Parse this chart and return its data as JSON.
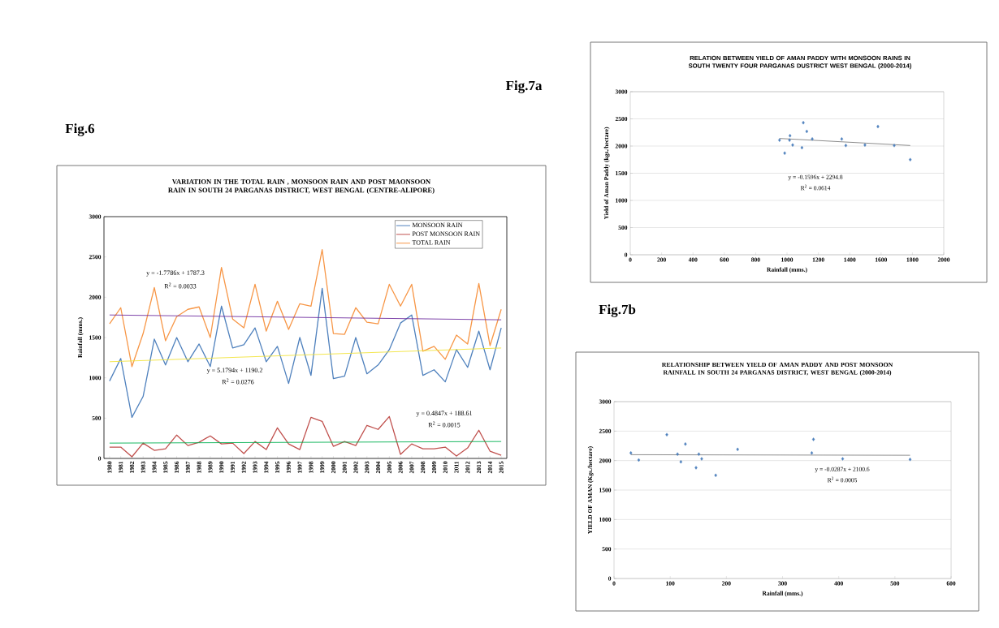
{
  "chart_data": [
    {
      "type": "line",
      "title": "VARIATION IN THE TOTAL RAIN , MONSOON RAIN AND POST MAONSOON RAIN IN SOUTH 24 PARGANAS DISTRICT, WEST BENGAL (CENTRE-ALIPORE)",
      "ylabel": "Rainfall (mms.)",
      "x": [
        1980,
        1981,
        1982,
        1983,
        1984,
        1985,
        1986,
        1987,
        1988,
        1989,
        1990,
        1991,
        1992,
        1993,
        1994,
        1995,
        1996,
        1997,
        1998,
        1999,
        2000,
        2001,
        2002,
        2003,
        2004,
        2005,
        2006,
        2007,
        2008,
        2009,
        2010,
        2011,
        2012,
        2013,
        2014,
        2015
      ],
      "xlim": [
        1979.5,
        2015.5
      ],
      "xticks": [
        1980,
        1981,
        1982,
        1983,
        1984,
        1985,
        1986,
        1987,
        1988,
        1989,
        1990,
        1991,
        1992,
        1993,
        1994,
        1995,
        1996,
        1997,
        1998,
        1999,
        2000,
        2001,
        2002,
        2003,
        2004,
        2005,
        2006,
        2007,
        2008,
        2009,
        2010,
        2011,
        2012,
        2013,
        2014,
        2015
      ],
      "ylim": [
        0,
        3000
      ],
      "yticks": [
        0,
        500,
        1000,
        1500,
        2000,
        2500,
        3000
      ],
      "legend": "top right",
      "marker": "none",
      "series": [
        {
          "name": "MONSOON RAIN",
          "color": "#4f81bd",
          "values": [
            960,
            1240,
            510,
            770,
            1480,
            1160,
            1500,
            1200,
            1420,
            1140,
            1890,
            1370,
            1410,
            1620,
            1200,
            1390,
            930,
            1500,
            1030,
            2110,
            990,
            1020,
            1500,
            1050,
            1160,
            1350,
            1680,
            1780,
            1030,
            1100,
            950,
            1350,
            1130,
            1580,
            1100,
            1620
          ]
        },
        {
          "name": "POST MONSOON RAIN",
          "color": "#c0504d",
          "values": [
            140,
            140,
            20,
            190,
            100,
            120,
            290,
            160,
            200,
            280,
            180,
            190,
            60,
            210,
            110,
            380,
            180,
            110,
            510,
            460,
            150,
            210,
            160,
            410,
            360,
            520,
            50,
            180,
            120,
            120,
            140,
            30,
            130,
            350,
            90,
            40
          ]
        },
        {
          "name": "TOTAL RAIN",
          "color": "#f79646",
          "values": [
            1670,
            1870,
            1140,
            1550,
            2120,
            1460,
            1760,
            1850,
            1880,
            1500,
            2370,
            1730,
            1620,
            2160,
            1580,
            1950,
            1600,
            1920,
            1890,
            2590,
            1550,
            1540,
            1870,
            1690,
            1670,
            2160,
            1890,
            2160,
            1330,
            1390,
            1230,
            1530,
            1420,
            2170,
            1400,
            1850
          ]
        },
        {
          "type": "line",
          "color": "#7030a0",
          "x": [
            1980,
            2015
          ],
          "values": [
            1780,
            1720
          ]
        },
        {
          "type": "line",
          "color": "#f2e33c",
          "x": [
            1980,
            2015
          ],
          "values": [
            1200,
            1370
          ]
        },
        {
          "type": "line",
          "color": "#00b050",
          "x": [
            1980,
            2015
          ],
          "values": [
            190,
            210
          ]
        }
      ],
      "annotations": [
        "Fig.6",
        "y = -1.7786x + 1787.3",
        "R$^{2}$ = 0.0033",
        "y = 5.1794x + 1190.2",
        "R$^{2}$ = 0.0276",
        "y = 0.4847x + 188.61",
        "R$^{2}$ = 0.0015"
      ]
    },
    {
      "type": "scatter",
      "title": "RELATION BETWEEN YIELD OF AMAN PADDY WITH MONSOON RAINS IN SOUTH TWENTY FOUR PARGANAS DUSTRICT WEST BENGAL (2000-2014)",
      "xlabel": "Rainfall (mms.)",
      "ylabel": "Yield of Aman Paddy (kgs./hectare)",
      "xlim": [
        0,
        2000
      ],
      "xticks": [
        0,
        200,
        400,
        600,
        800,
        1000,
        1200,
        1400,
        1600,
        1800,
        2000
      ],
      "ylim": [
        0,
        3000
      ],
      "yticks": [
        0,
        500,
        1000,
        1500,
        2000,
        2500,
        3000
      ],
      "grid": "y",
      "marker": "diamond",
      "series": [
        {
          "color": "#4f81bd",
          "x": [
            952,
            985,
            1019,
            1016,
            1036,
            1095,
            1104,
            1126,
            1161,
            1349,
            1375,
            1497,
            1580,
            1684,
            1786
          ],
          "values": [
            2110,
            1870,
            2190,
            2110,
            2020,
            1970,
            2430,
            2270,
            2130,
            2130,
            2010,
            2020,
            2360,
            2010,
            1750
          ]
        },
        {
          "type": "line",
          "color": "#808080",
          "marker": "none",
          "x": [
            952,
            1786
          ],
          "values": [
            2140,
            2010
          ]
        }
      ],
      "annotations": [
        "Fig.7a",
        "y = -0.1596x + 2294.8",
        "R$^{2}$ = 0.0614"
      ]
    },
    {
      "type": "scatter",
      "title": "RELATIONSHIP BETWEEN YIELD OF AMAN PADDY AND POST MONSOON RAINFALL IN SOUTH 24 PARGANAS DISTRICT, WEST BENGAL (2000-2014)",
      "xlabel": "Rainfall (mms.)",
      "ylabel": "YIELD OF AMAN (Kgs./hectare)",
      "xlim": [
        0,
        600
      ],
      "xticks": [
        0,
        100,
        200,
        300,
        400,
        500,
        600
      ],
      "ylim": [
        0,
        3000
      ],
      "yticks": [
        0,
        500,
        1000,
        1500,
        2000,
        2500,
        3000
      ],
      "grid": "y",
      "marker": "diamond",
      "series": [
        {
          "color": "#4f81bd",
          "x": [
            30,
            44,
            94,
            113,
            119,
            127,
            146,
            151,
            156,
            181,
            220,
            352,
            355,
            407,
            527
          ],
          "values": [
            2130,
            2010,
            2440,
            2110,
            1980,
            2280,
            1880,
            2110,
            2030,
            1750,
            2190,
            2130,
            2360,
            2030,
            2020
          ]
        },
        {
          "type": "line",
          "color": "#808080",
          "marker": "none",
          "x": [
            30,
            527
          ],
          "values": [
            2100,
            2090
          ]
        }
      ],
      "annotations": [
        "Fig.7b",
        "y = -0.0287x + 2100.6",
        "R$^{2}$ = 0.0005"
      ]
    }
  ]
}
